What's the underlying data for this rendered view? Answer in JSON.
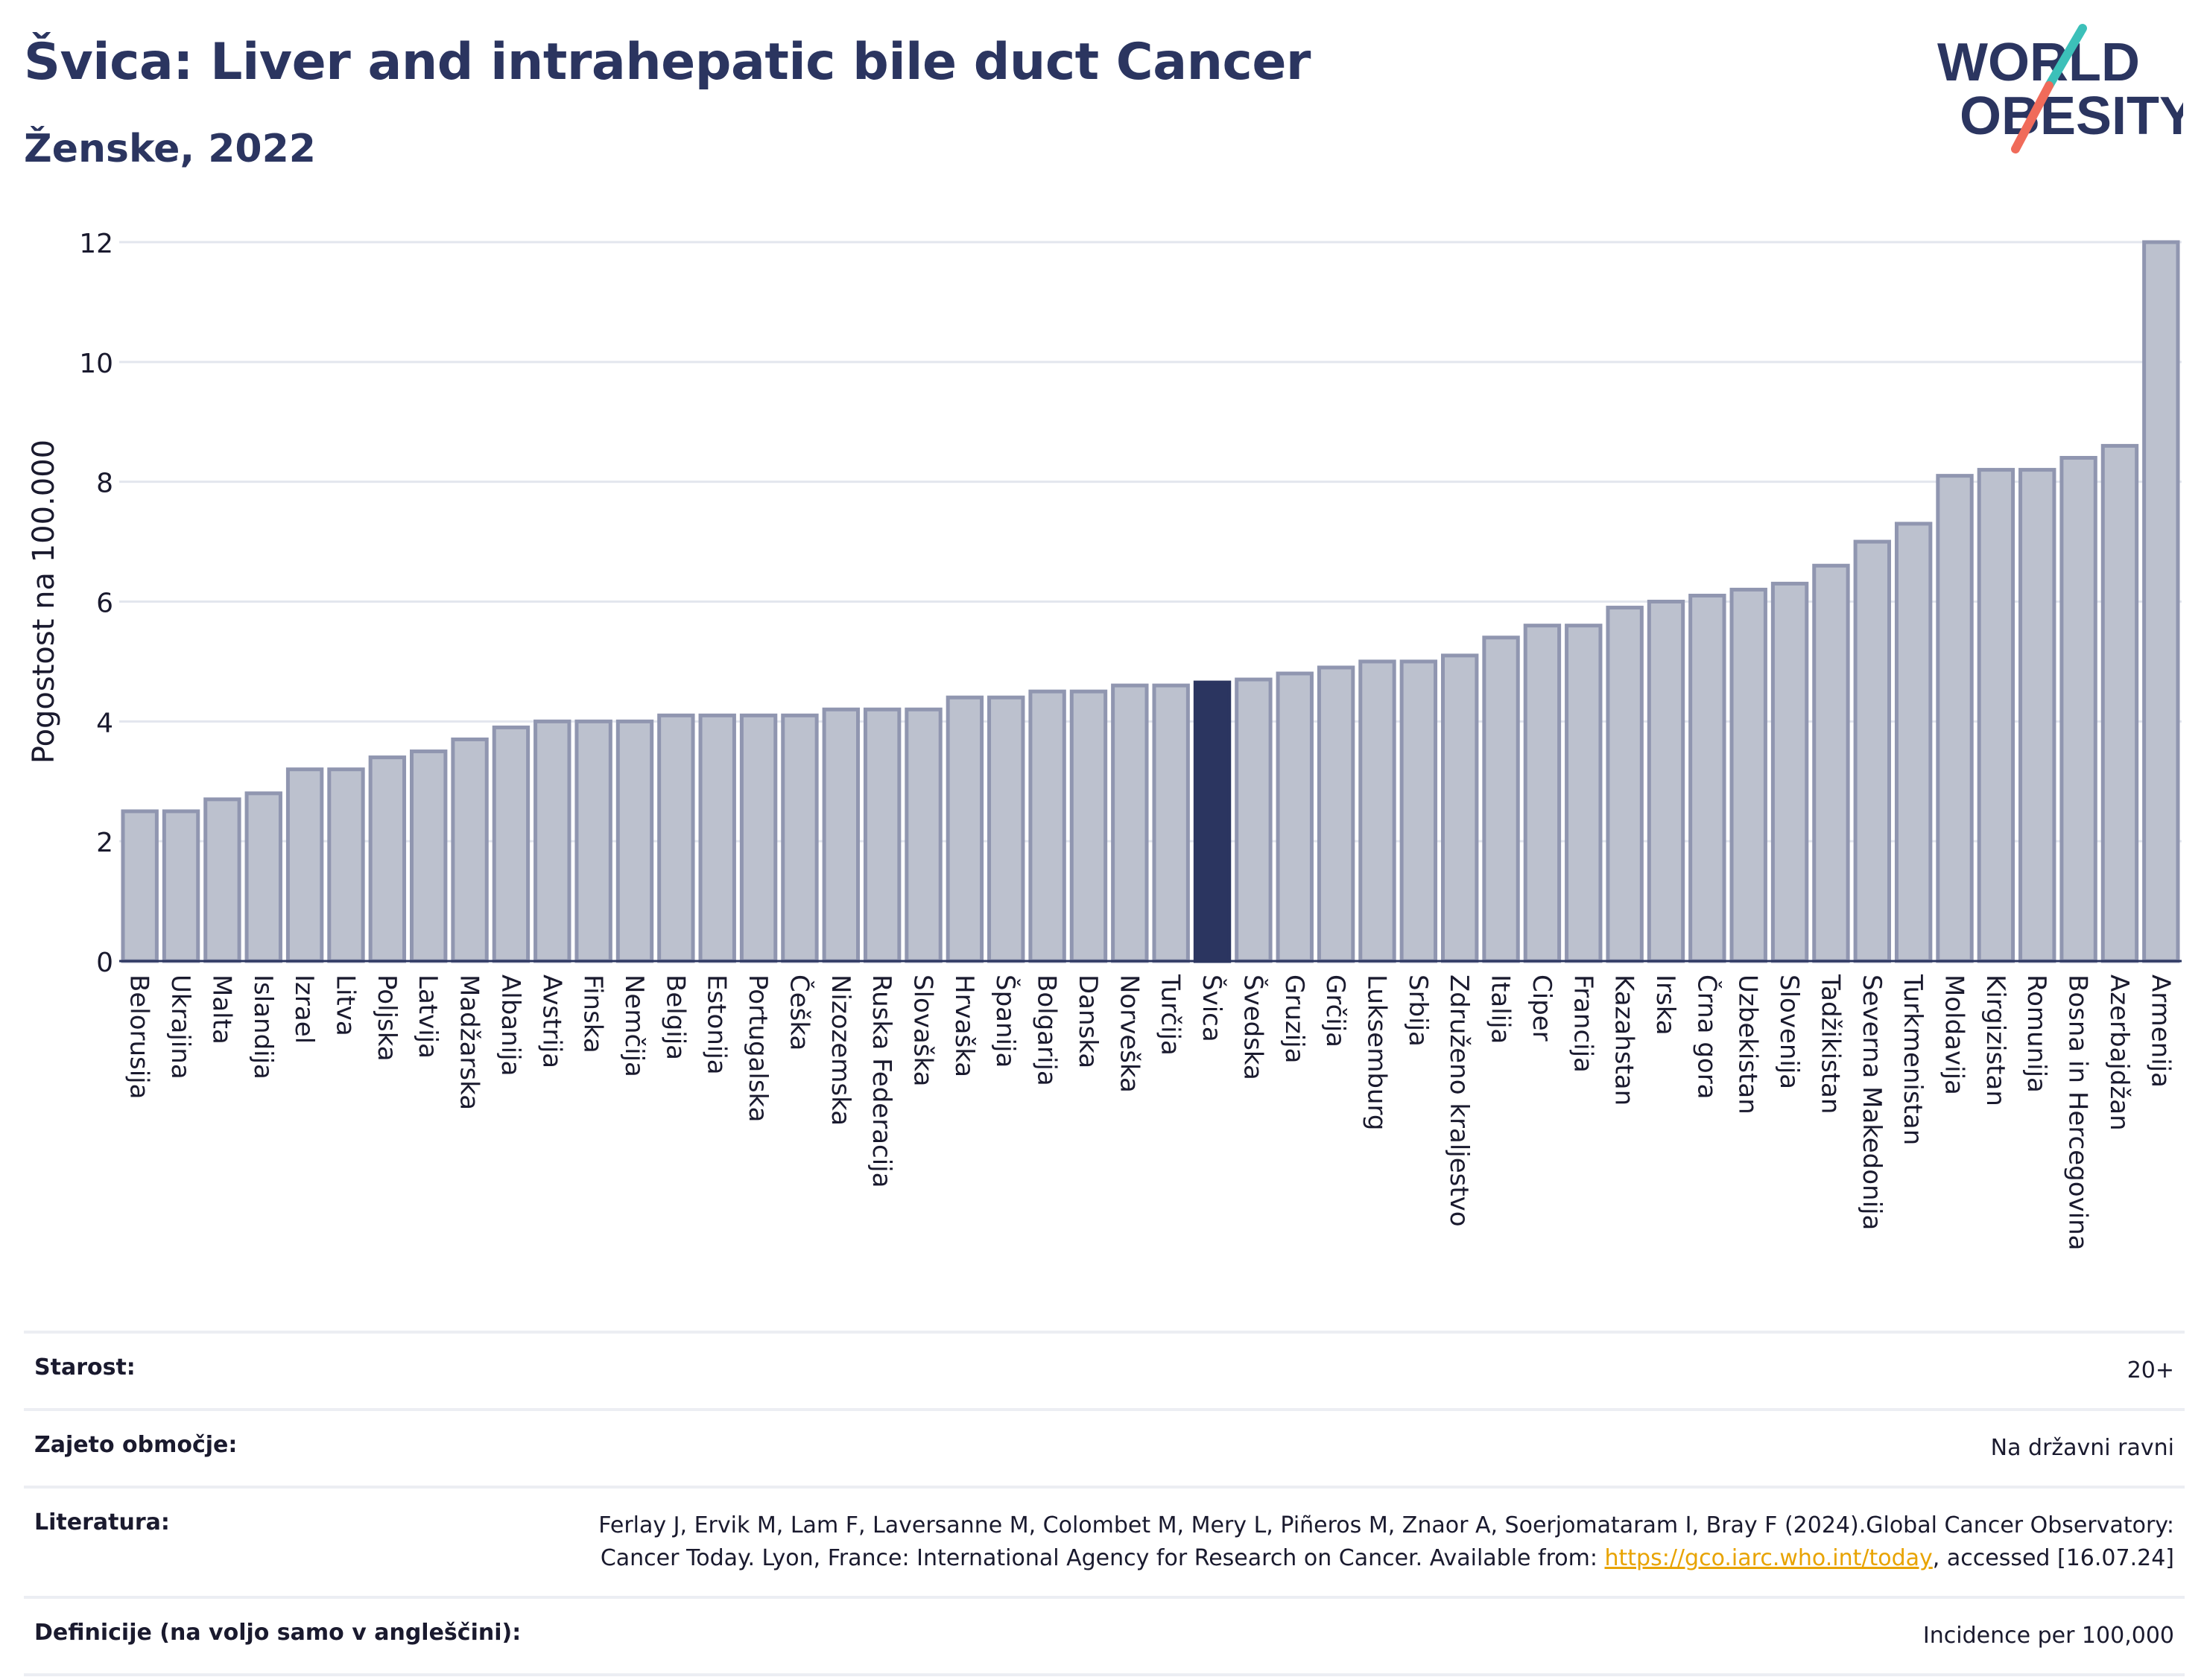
{
  "header": {
    "title": "Švica: Liver and intrahepatic bile duct Cancer",
    "subtitle": "Ženske, 2022"
  },
  "logo": {
    "line1": "WORLD",
    "line2": "OBESITY",
    "colors": {
      "text": "#2b3560",
      "slash_teal": "#3cc0b9",
      "slash_coral": "#f06b5a"
    }
  },
  "chart_data": {
    "type": "bar",
    "ylabel": "Pogostost na 100.000",
    "ylim": [
      0,
      12
    ],
    "yticks": [
      0,
      2,
      4,
      6,
      8,
      10,
      12
    ],
    "grid": true,
    "highlight": "Švica",
    "colors": {
      "bar": "#bcc1ce",
      "bar_edge": "#9096b0",
      "highlight": "#2b3560",
      "grid": "#e3e6ee"
    },
    "categories": [
      "Belorusija",
      "Ukrajina",
      "Malta",
      "Islandija",
      "Izrael",
      "Litva",
      "Poljska",
      "Latvija",
      "Madžarska",
      "Albanija",
      "Avstrija",
      "Finska",
      "Nemčija",
      "Belgija",
      "Estonija",
      "Portugalska",
      "Češka",
      "Nizozemska",
      "Ruska Federacija",
      "Slovaška",
      "Hrvaška",
      "Španija",
      "Bolgarija",
      "Danska",
      "Norveška",
      "Turčija",
      "Švica",
      "Švedska",
      "Gruzija",
      "Grčija",
      "Luksemburg",
      "Srbija",
      "Združeno kraljestvo",
      "Italija",
      "Ciper",
      "Francija",
      "Kazahstan",
      "Irska",
      "Črna gora",
      "Uzbekistan",
      "Slovenija",
      "Tadžikistan",
      "Severna Makedonija",
      "Turkmenistan",
      "Moldavija",
      "Kirgizistan",
      "Romunija",
      "Bosna in Hercegovina",
      "Azerbajdžan",
      "Armenija"
    ],
    "values": [
      2.5,
      2.5,
      2.7,
      2.8,
      3.2,
      3.2,
      3.4,
      3.5,
      3.7,
      3.9,
      4.0,
      4.0,
      4.0,
      4.1,
      4.1,
      4.1,
      4.1,
      4.2,
      4.2,
      4.2,
      4.4,
      4.4,
      4.5,
      4.5,
      4.6,
      4.6,
      4.65,
      4.7,
      4.8,
      4.9,
      5.0,
      5.0,
      5.1,
      5.4,
      5.6,
      5.6,
      5.9,
      6.0,
      6.1,
      6.2,
      6.3,
      6.6,
      7.0,
      7.3,
      8.1,
      8.2,
      8.2,
      8.4,
      8.6,
      12.0
    ]
  },
  "meta": {
    "rows": [
      {
        "label": "Starost:",
        "value": "20+"
      },
      {
        "label": "Zajeto območje:",
        "value": "Na državni ravni"
      },
      {
        "label": "Literatura:",
        "value_before": "Ferlay J, Ervik M, Lam F, Laversanne M, Colombet M, Mery L, Piñeros M, Znaor A, Soerjomataram I, Bray F (2024).Global Cancer Observatory: Cancer Today. Lyon, France: International Agency for Research on Cancer. Available from: ",
        "link": "https://gco.iarc.who.int/today",
        "value_after": ", accessed [16.07.24]"
      },
      {
        "label": "Definicije (na voljo samo v angleščini):",
        "value": "Incidence per 100,000"
      }
    ]
  }
}
